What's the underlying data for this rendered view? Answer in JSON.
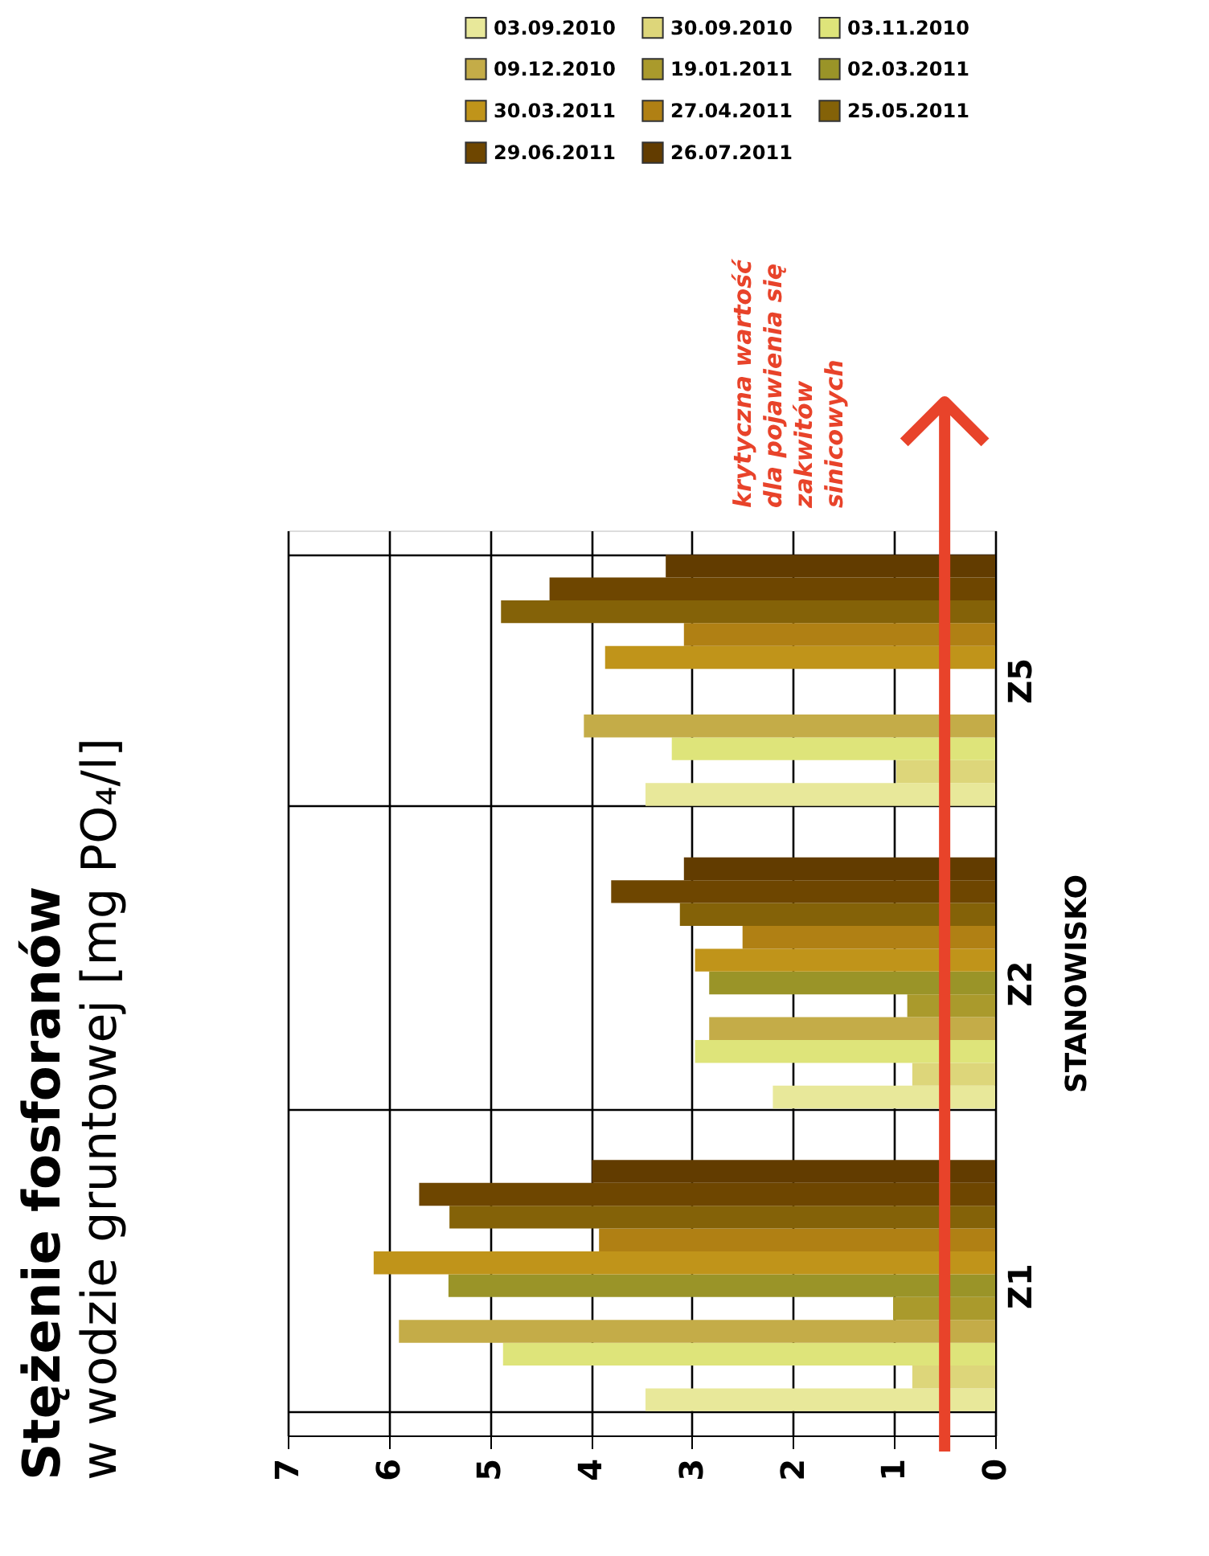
{
  "chart_data": {
    "type": "bar",
    "orientation": "horizontal",
    "title": "Stężenie fosforanów",
    "subtitle": "w wodzie gruntowej [mg PO₄/l]",
    "ylabel": "STANOWISKO",
    "categories": [
      "Z5",
      "Z2",
      "Z1"
    ],
    "series": [
      {
        "name": "03.09.2010",
        "color": "#e8e89a",
        "values": [
          3.46,
          2.2,
          3.46
        ]
      },
      {
        "name": "30.09.2010",
        "color": "#ddd67a",
        "values": [
          0.98,
          0.82,
          0.82
        ]
      },
      {
        "name": "03.11.2010",
        "color": "#dee47a",
        "values": [
          3.2,
          2.97,
          4.87
        ]
      },
      {
        "name": "09.12.2010",
        "color": "#c4ac48",
        "values": [
          4.07,
          2.83,
          5.9
        ]
      },
      {
        "name": "19.01.2011",
        "color": "#aa9a2c",
        "values": [
          null,
          0.87,
          1.01
        ]
      },
      {
        "name": "02.03.2011",
        "color": "#9a9428",
        "values": [
          null,
          2.83,
          5.41
        ]
      },
      {
        "name": "30.03.2011",
        "color": "#c0941a",
        "values": [
          3.86,
          2.97,
          6.15
        ]
      },
      {
        "name": "27.04.2011",
        "color": "#b08014",
        "values": [
          3.08,
          2.5,
          3.92
        ]
      },
      {
        "name": "25.05.2011",
        "color": "#846208",
        "values": [
          4.89,
          3.12,
          5.4
        ]
      },
      {
        "name": "29.06.2011",
        "color": "#6e4600",
        "values": [
          4.41,
          3.8,
          5.7
        ]
      },
      {
        "name": "26.07.2011",
        "color": "#623c00",
        "values": [
          3.26,
          3.08,
          3.99
        ]
      }
    ],
    "xlim": [
      7,
      0
    ],
    "xticks": [
      0,
      1,
      2,
      3,
      4,
      5,
      6,
      7
    ],
    "grid": true,
    "legend": "top right",
    "ref_lines": [
      {
        "axis": "x",
        "value": 0.5,
        "label": "krytyczna wartość\ndla pojawienia się\nzakwitów\nsinicowych",
        "color": "#e8432a"
      }
    ]
  }
}
